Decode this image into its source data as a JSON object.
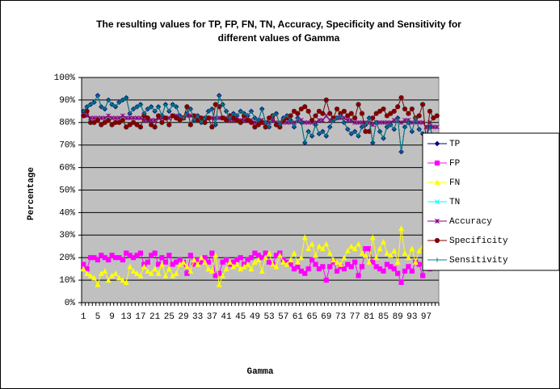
{
  "chart_data": {
    "type": "line",
    "title": "The resulting values for TP, FP, FN, TN, Accuracy, Specificity and Sensitivity for different values of Gamma",
    "x_label": "Gamma",
    "y_label": "Percentage",
    "categories": [
      "1",
      null,
      null,
      null,
      "5",
      null,
      null,
      null,
      "9",
      null,
      null,
      null,
      "13",
      null,
      null,
      null,
      "17",
      null,
      null,
      null,
      "21",
      null,
      null,
      null,
      "25",
      null,
      null,
      null,
      "29",
      null,
      null,
      null,
      "33",
      null,
      null,
      null,
      "37",
      null,
      null,
      null,
      "41",
      null,
      null,
      null,
      "45",
      null,
      null,
      null,
      "49",
      null,
      null,
      null,
      "53",
      null,
      null,
      null,
      "57",
      null,
      null,
      null,
      "61",
      null,
      null,
      null,
      "65",
      null,
      null,
      null,
      "69",
      null,
      null,
      null,
      "73",
      null,
      null,
      null,
      "77",
      null,
      null,
      null,
      "81",
      null,
      null,
      null,
      "85",
      null,
      null,
      null,
      "89",
      null,
      null,
      null,
      "93",
      null,
      null,
      null,
      "97",
      null,
      null,
      null
    ],
    "ylim": [
      0,
      100
    ],
    "yticks": [
      {
        "value": 0,
        "label": "0%"
      },
      {
        "value": 10,
        "label": "10%"
      },
      {
        "value": 20,
        "label": "20%"
      },
      {
        "value": 30,
        "label": "30%"
      },
      {
        "value": 40,
        "label": "40%"
      },
      {
        "value": 50,
        "label": "50%"
      },
      {
        "value": 60,
        "label": "60%"
      },
      {
        "value": 70,
        "label": "70%"
      },
      {
        "value": 80,
        "label": "80%"
      },
      {
        "value": 90,
        "label": "90%"
      },
      {
        "value": 100,
        "label": "100%"
      }
    ],
    "grid": true,
    "legend": "right",
    "series": [
      {
        "name": "TP",
        "color": "#000080",
        "marker": "diamond",
        "values": [
          85,
          87,
          88,
          89,
          92,
          87,
          86,
          90,
          88,
          87,
          89,
          90,
          91,
          84,
          86,
          87,
          88,
          84,
          86,
          87,
          85,
          87,
          83,
          88,
          85,
          88,
          87,
          83,
          82,
          84,
          86,
          81,
          83,
          80,
          82,
          85,
          86,
          79,
          92,
          88,
          85,
          82,
          84,
          83,
          85,
          84,
          83,
          85,
          82,
          81,
          86,
          80,
          78,
          83,
          84,
          79,
          82,
          83,
          81,
          78,
          82,
          80,
          71,
          76,
          74,
          79,
          75,
          76,
          74,
          78,
          81,
          82,
          83,
          80,
          77,
          75,
          76,
          74,
          78,
          79,
          82,
          71,
          80,
          76,
          73,
          78,
          79,
          77,
          82,
          67,
          78,
          80,
          76,
          82,
          77,
          75,
          74,
          78,
          73,
          74
        ]
      },
      {
        "name": "FP",
        "color": "#ff00ff",
        "marker": "square",
        "values": [
          17,
          15,
          20,
          20,
          19,
          21,
          20,
          19,
          21,
          20,
          20,
          19,
          22,
          21,
          20,
          21,
          22,
          17,
          18,
          21,
          22,
          17,
          20,
          18,
          21,
          17,
          18,
          19,
          18,
          13,
          21,
          17,
          19,
          18,
          20,
          18,
          22,
          12,
          13,
          18,
          19,
          17,
          18,
          19,
          20,
          17,
          19,
          20,
          22,
          21,
          20,
          22,
          18,
          17,
          21,
          22,
          19,
          18,
          17,
          15,
          16,
          14,
          13,
          15,
          19,
          17,
          15,
          16,
          10,
          16,
          18,
          14,
          16,
          15,
          17,
          16,
          18,
          12,
          16,
          24,
          24,
          18,
          16,
          15,
          14,
          17,
          16,
          15,
          13,
          9,
          14,
          16,
          14,
          18,
          17,
          12,
          28,
          15,
          18,
          17
        ]
      },
      {
        "name": "FN",
        "color": "#ffff00",
        "marker": "triangle",
        "values": [
          15,
          13,
          12,
          11,
          8,
          13,
          14,
          10,
          12,
          13,
          11,
          10,
          9,
          16,
          14,
          13,
          12,
          16,
          14,
          13,
          15,
          13,
          17,
          12,
          15,
          12,
          13,
          17,
          18,
          16,
          14,
          19,
          17,
          20,
          18,
          15,
          14,
          21,
          8,
          12,
          15,
          18,
          16,
          17,
          15,
          16,
          17,
          15,
          18,
          19,
          14,
          20,
          22,
          17,
          16,
          21,
          18,
          17,
          19,
          22,
          18,
          20,
          29,
          24,
          26,
          21,
          25,
          24,
          26,
          22,
          19,
          18,
          17,
          20,
          23,
          25,
          24,
          26,
          22,
          21,
          18,
          29,
          20,
          24,
          27,
          22,
          21,
          23,
          18,
          33,
          22,
          20,
          24,
          18,
          23,
          25,
          26,
          22,
          27,
          26
        ]
      },
      {
        "name": "TN",
        "color": "#00ffff",
        "marker": "x",
        "values": [
          83,
          85,
          80,
          80,
          81,
          79,
          80,
          81,
          79,
          80,
          80,
          81,
          78,
          79,
          80,
          79,
          78,
          83,
          82,
          79,
          78,
          83,
          80,
          82,
          79,
          83,
          82,
          81,
          82,
          87,
          79,
          83,
          81,
          82,
          80,
          82,
          78,
          88,
          87,
          82,
          81,
          83,
          82,
          81,
          80,
          83,
          81,
          80,
          78,
          79,
          80,
          78,
          82,
          83,
          79,
          78,
          81,
          82,
          83,
          85,
          84,
          86,
          87,
          85,
          81,
          83,
          85,
          84,
          90,
          84,
          82,
          86,
          84,
          85,
          83,
          84,
          82,
          88,
          84,
          76,
          76,
          82,
          84,
          85,
          86,
          83,
          84,
          85,
          87,
          91,
          86,
          84,
          86,
          82,
          83,
          88,
          72,
          85,
          82,
          83
        ]
      },
      {
        "name": "Accuracy",
        "color": "#800080",
        "marker": "star",
        "values": [
          83,
          83,
          82,
          82,
          82,
          82,
          82,
          83,
          82,
          82,
          82,
          83,
          82,
          82,
          82,
          82,
          82,
          81,
          81,
          81,
          81,
          82,
          82,
          82,
          82,
          83,
          83,
          82,
          82,
          83,
          83,
          82,
          82,
          81,
          81,
          82,
          82,
          82,
          82,
          82,
          82,
          81,
          81,
          81,
          81,
          81,
          81,
          81,
          80,
          80,
          81,
          80,
          80,
          81,
          80,
          80,
          80,
          80,
          80,
          80,
          81,
          81,
          80,
          80,
          80,
          80,
          81,
          81,
          83,
          81,
          82,
          82,
          82,
          82,
          81,
          81,
          80,
          80,
          80,
          80,
          80,
          79,
          80,
          80,
          80,
          80,
          80,
          81,
          81,
          80,
          81,
          81,
          80,
          80,
          80,
          80,
          78,
          80,
          78,
          78
        ]
      },
      {
        "name": "Specificity",
        "color": "#800000",
        "marker": "circle",
        "values": [
          83,
          85,
          80,
          80,
          81,
          79,
          80,
          81,
          79,
          80,
          80,
          81,
          78,
          79,
          80,
          79,
          78,
          83,
          82,
          79,
          78,
          83,
          80,
          82,
          79,
          83,
          82,
          81,
          82,
          87,
          79,
          83,
          81,
          82,
          80,
          82,
          78,
          88,
          87,
          82,
          81,
          83,
          82,
          81,
          80,
          83,
          81,
          80,
          78,
          79,
          80,
          78,
          82,
          83,
          79,
          78,
          81,
          82,
          83,
          85,
          84,
          86,
          87,
          85,
          81,
          83,
          85,
          84,
          90,
          84,
          82,
          86,
          84,
          85,
          83,
          84,
          82,
          88,
          84,
          76,
          76,
          82,
          84,
          85,
          86,
          83,
          84,
          85,
          87,
          91,
          86,
          84,
          86,
          82,
          83,
          88,
          72,
          85,
          82,
          83
        ]
      },
      {
        "name": "Sensitivity",
        "color": "#008080",
        "marker": "plus",
        "values": [
          85,
          87,
          88,
          89,
          92,
          87,
          86,
          90,
          88,
          87,
          89,
          90,
          91,
          84,
          86,
          87,
          88,
          84,
          86,
          87,
          85,
          87,
          83,
          88,
          85,
          88,
          87,
          83,
          82,
          84,
          86,
          81,
          83,
          80,
          82,
          85,
          86,
          79,
          92,
          88,
          85,
          82,
          84,
          83,
          85,
          84,
          83,
          85,
          82,
          81,
          86,
          80,
          78,
          83,
          84,
          79,
          82,
          83,
          81,
          78,
          82,
          80,
          71,
          76,
          74,
          79,
          75,
          76,
          74,
          78,
          81,
          82,
          83,
          80,
          77,
          75,
          76,
          74,
          78,
          79,
          82,
          71,
          80,
          76,
          73,
          78,
          79,
          77,
          82,
          67,
          78,
          80,
          76,
          82,
          77,
          75,
          74,
          78,
          73,
          74
        ]
      }
    ]
  }
}
